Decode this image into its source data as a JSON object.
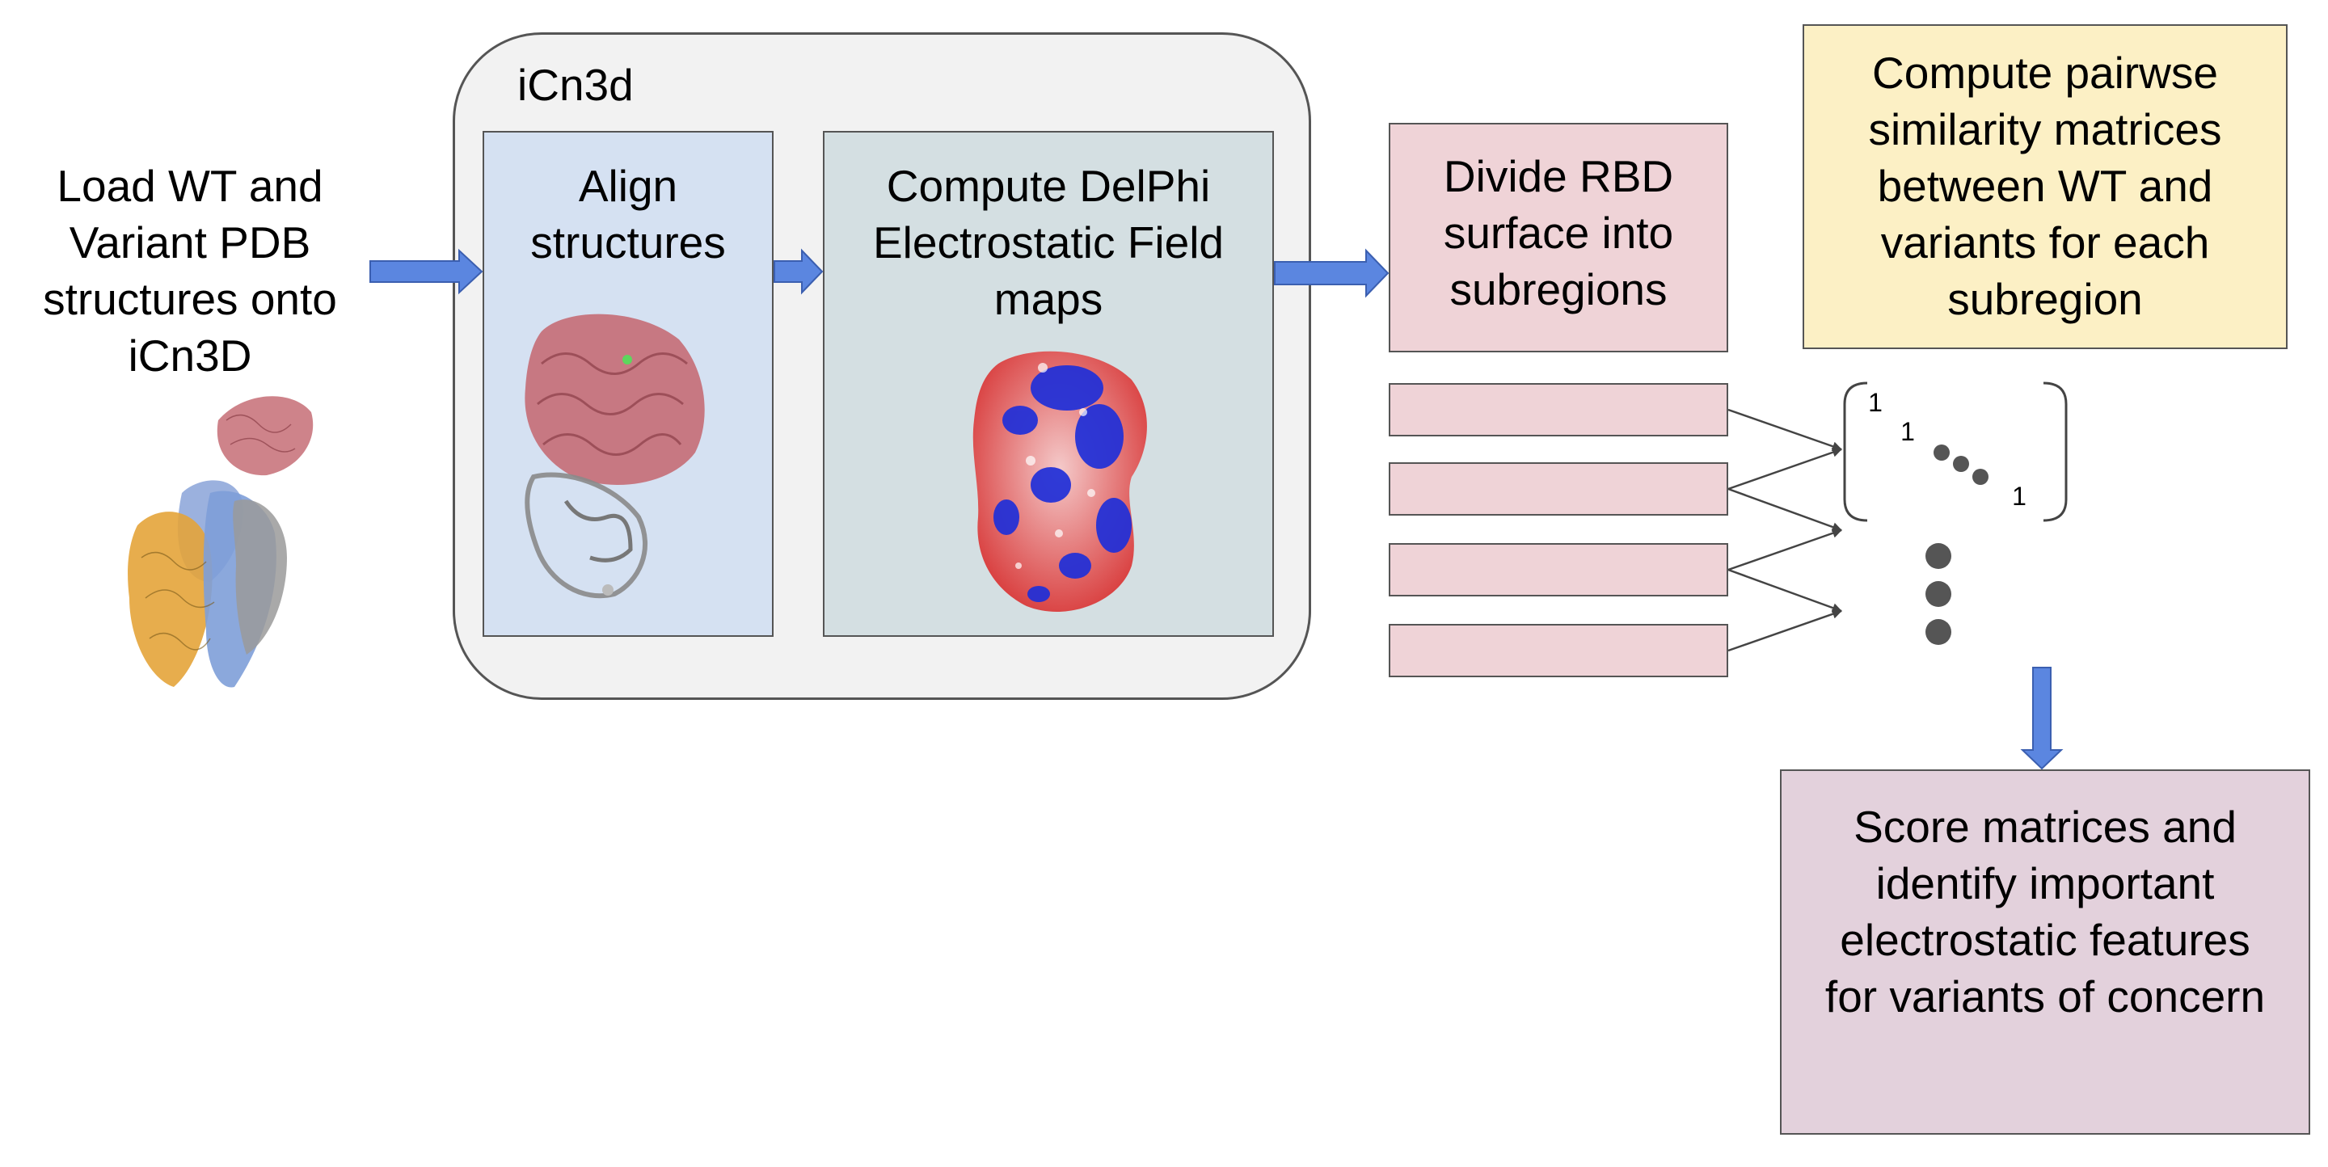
{
  "steps": {
    "load": "Load WT and\nVariant PDB\nstructures onto\niCn3D",
    "icn3d_label": "iCn3d",
    "align": "Align\nstructures",
    "delphi": "Compute DelPhi\nElectrostatic Field\nmaps",
    "divide": "Divide RBD\nsurface into\nsubregions",
    "pairwise": "Compute pairwse\nsimilarity matrices\nbetween WT and\nvariants for each\nsubregion",
    "score": "Score matrices and\nidentify important\nelectrostatic features\nfor variants of concern"
  },
  "matrix": {
    "diag": [
      "1",
      "1",
      "1"
    ]
  },
  "colors": {
    "arrow": "#5b86e0",
    "align_fill": "#d5e1f2",
    "delphi_fill": "#d4dfe2",
    "subregion_fill": "#efd3d7",
    "pairwise_fill": "#fcf0c5",
    "score_fill": "#e3d1dc",
    "icn3d_fill": "#f2f2f2"
  }
}
